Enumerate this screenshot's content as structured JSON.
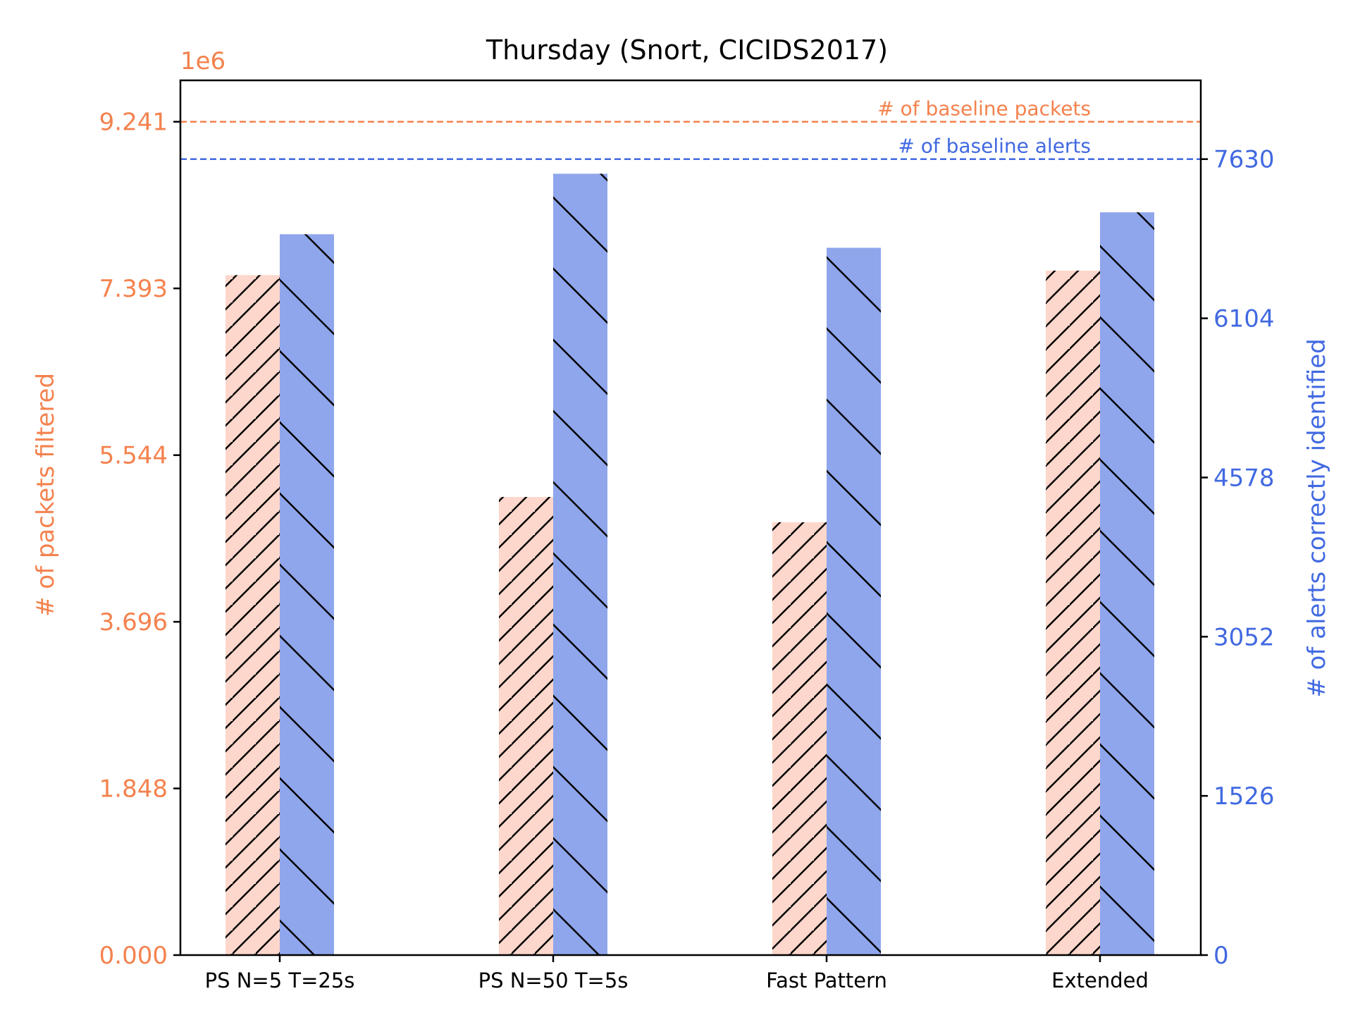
{
  "chart_data": {
    "type": "bar",
    "title": "Thursday (Snort, CICIDS2017)",
    "categories": [
      "PS N=5 T=25s",
      "PS N=50 T=5s",
      "Fast Pattern",
      "Extended"
    ],
    "series": [
      {
        "values": [
          7.54,
          5.08,
          4.8,
          7.59
        ],
        "axis": "left",
        "color": "#FDD7CB",
        "hatch": "/"
      },
      {
        "values": [
          6910,
          7490,
          6780,
          7120
        ],
        "axis": "right",
        "color": "#8FA6EC",
        "hatch": "\\"
      }
    ],
    "left_axis": {
      "label": "# of packets filtered",
      "offset_text": "1e6",
      "ticks": [
        "0.000",
        "1.848",
        "3.696",
        "5.544",
        "7.393",
        "9.241"
      ],
      "tick_values": [
        0,
        1.848,
        3.696,
        5.544,
        7.393,
        9.241
      ],
      "ylim": [
        0,
        9.7
      ],
      "color": "#F4824E"
    },
    "right_axis": {
      "label": "# of alerts correctly identified",
      "ticks": [
        "0",
        "1526",
        "3052",
        "4578",
        "6104",
        "7630"
      ],
      "tick_values": [
        0,
        1526,
        3052,
        4578,
        6104,
        7630
      ],
      "ylim": [
        0,
        8385
      ],
      "color": "#4169E1"
    },
    "baselines": [
      {
        "label": "# of baseline packets",
        "value": 9.241,
        "axis": "left",
        "color": "#F4824E"
      },
      {
        "label": "# of baseline alerts",
        "value": 7630,
        "axis": "right",
        "color": "#4169E1"
      }
    ],
    "grid": false
  }
}
